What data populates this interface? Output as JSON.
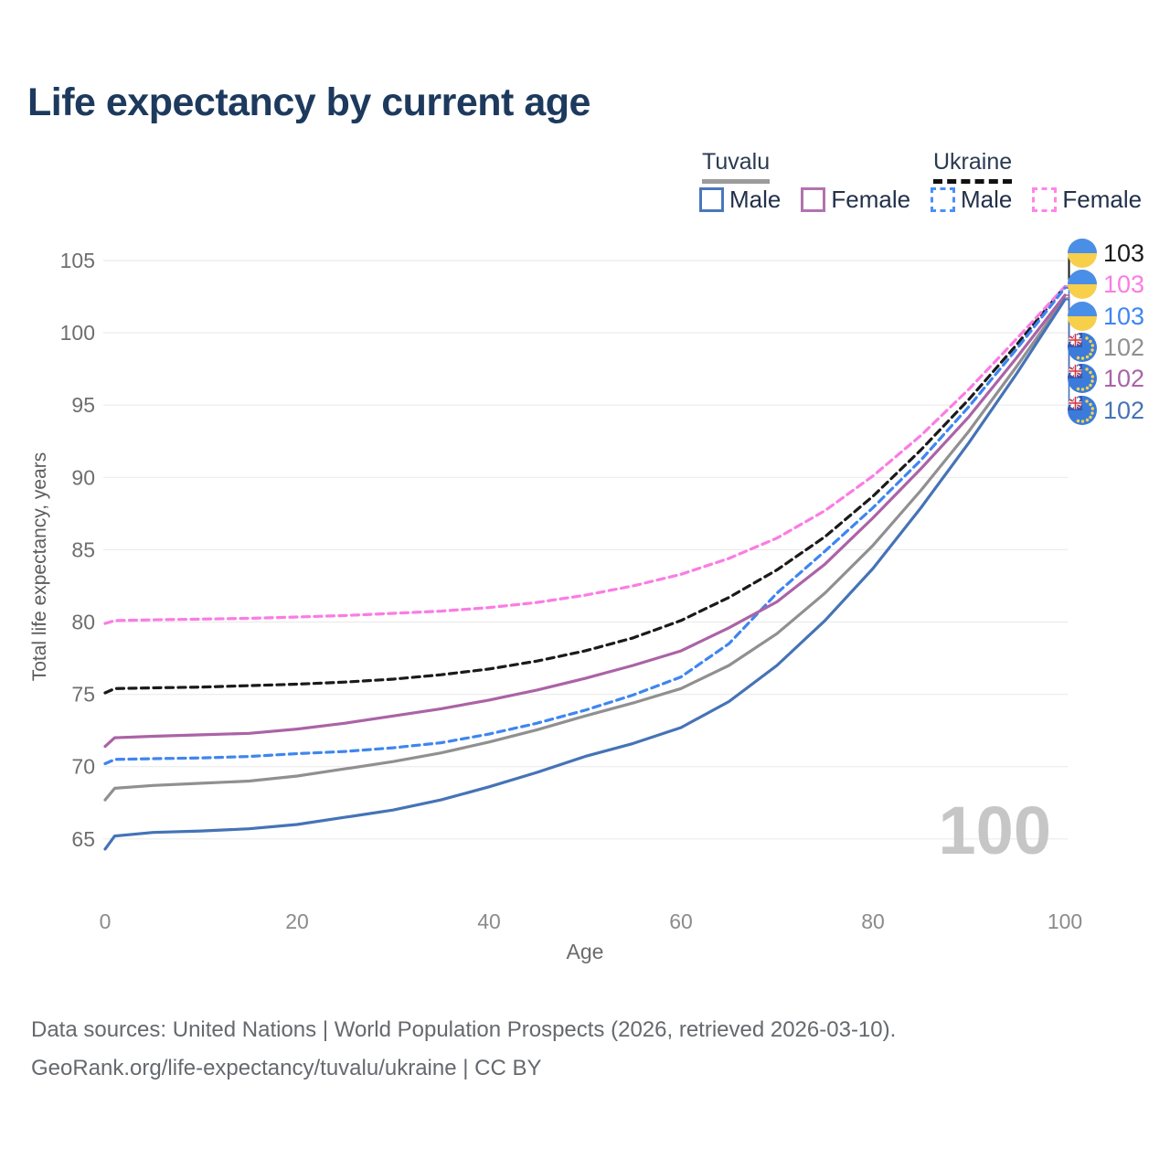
{
  "title": "Life expectancy by current age",
  "watermark": "100",
  "legend": {
    "groups": [
      {
        "country": "Tuvalu",
        "line_style": "solid",
        "line_color": "#9b9b9b",
        "items": [
          {
            "label": "Male",
            "color": "#4a77bb",
            "style": "solid"
          },
          {
            "label": "Female",
            "color": "#b273ae",
            "style": "solid"
          }
        ]
      },
      {
        "country": "Ukraine",
        "line_style": "dashed",
        "line_color": "#111111",
        "items": [
          {
            "label": "Male",
            "color": "#4a90f5",
            "style": "dashed"
          },
          {
            "label": "Female",
            "color": "#ff85e8",
            "style": "dashed"
          }
        ]
      }
    ]
  },
  "chart_data": {
    "type": "line",
    "title": "Life expectancy by current age",
    "xlabel": "Age",
    "ylabel": "Total life expectancy, years",
    "xlim": [
      0,
      100
    ],
    "ylim": [
      65,
      105
    ],
    "x_ticks": [
      0,
      20,
      40,
      60,
      80,
      100
    ],
    "y_ticks": [
      65,
      70,
      75,
      80,
      85,
      90,
      95,
      100,
      105
    ],
    "grid": "horizontal",
    "legend_position": "top-right",
    "x": [
      0,
      1,
      5,
      10,
      15,
      20,
      25,
      30,
      35,
      40,
      45,
      50,
      55,
      60,
      65,
      70,
      75,
      80,
      85,
      90,
      95,
      100
    ],
    "series": [
      {
        "name": "Ukraine Both sexes",
        "country": "Ukraine",
        "sex": "both",
        "color": "#1a1a1a",
        "dashed": true,
        "end_label": "103",
        "flag": "ukraine",
        "values": [
          75.1,
          75.4,
          75.45,
          75.5,
          75.6,
          75.7,
          75.85,
          76.05,
          76.35,
          76.75,
          77.3,
          78.0,
          78.9,
          80.1,
          81.7,
          83.6,
          85.9,
          88.7,
          91.9,
          95.4,
          99.2,
          103.2
        ]
      },
      {
        "name": "Ukraine Female",
        "country": "Ukraine",
        "sex": "female",
        "color": "#fb7ce3",
        "dashed": true,
        "end_label": "103",
        "flag": "ukraine",
        "values": [
          79.9,
          80.1,
          80.15,
          80.2,
          80.25,
          80.35,
          80.45,
          80.6,
          80.75,
          81.0,
          81.35,
          81.85,
          82.5,
          83.3,
          84.4,
          85.8,
          87.7,
          90.1,
          92.9,
          96.1,
          99.6,
          103.2
        ]
      },
      {
        "name": "Ukraine Male",
        "country": "Ukraine",
        "sex": "male",
        "color": "#3e86f0",
        "dashed": true,
        "end_label": "103",
        "flag": "ukraine",
        "values": [
          70.2,
          70.5,
          70.55,
          70.6,
          70.7,
          70.9,
          71.05,
          71.3,
          71.65,
          72.25,
          73.0,
          73.9,
          74.95,
          76.2,
          78.5,
          82.0,
          84.9,
          87.9,
          91.2,
          94.9,
          98.9,
          103.1
        ]
      },
      {
        "name": "Tuvalu Both sexes",
        "country": "Tuvalu",
        "sex": "both",
        "color": "#909090",
        "dashed": false,
        "end_label": "102",
        "flag": "tuvalu",
        "values": [
          67.7,
          68.5,
          68.7,
          68.85,
          69.0,
          69.35,
          69.85,
          70.35,
          70.95,
          71.7,
          72.55,
          73.5,
          74.4,
          75.4,
          77.0,
          79.2,
          82.0,
          85.3,
          89.1,
          93.2,
          97.7,
          102.4
        ]
      },
      {
        "name": "Tuvalu Female",
        "country": "Tuvalu",
        "sex": "female",
        "color": "#ab63a6",
        "dashed": false,
        "end_label": "102",
        "flag": "tuvalu",
        "values": [
          71.4,
          72.0,
          72.1,
          72.2,
          72.3,
          72.6,
          73.0,
          73.5,
          74.0,
          74.6,
          75.3,
          76.1,
          77.0,
          78.0,
          79.6,
          81.4,
          84.0,
          87.2,
          90.6,
          94.2,
          98.3,
          102.6
        ]
      },
      {
        "name": "Tuvalu Male",
        "country": "Tuvalu",
        "sex": "male",
        "color": "#4573b6",
        "dashed": false,
        "end_label": "102",
        "flag": "tuvalu",
        "values": [
          64.3,
          65.2,
          65.45,
          65.55,
          65.7,
          66.0,
          66.5,
          67.0,
          67.7,
          68.6,
          69.6,
          70.7,
          71.6,
          72.7,
          74.5,
          77.0,
          80.1,
          83.7,
          87.9,
          92.4,
          97.2,
          102.3
        ]
      }
    ]
  },
  "footer": {
    "line1": "Data sources: United Nations | World Population Prospects (2026, retrieved 2026-03-10).",
    "line2": "GeoRank.org/life-expectancy/tuvalu/ukraine | CC BY"
  }
}
